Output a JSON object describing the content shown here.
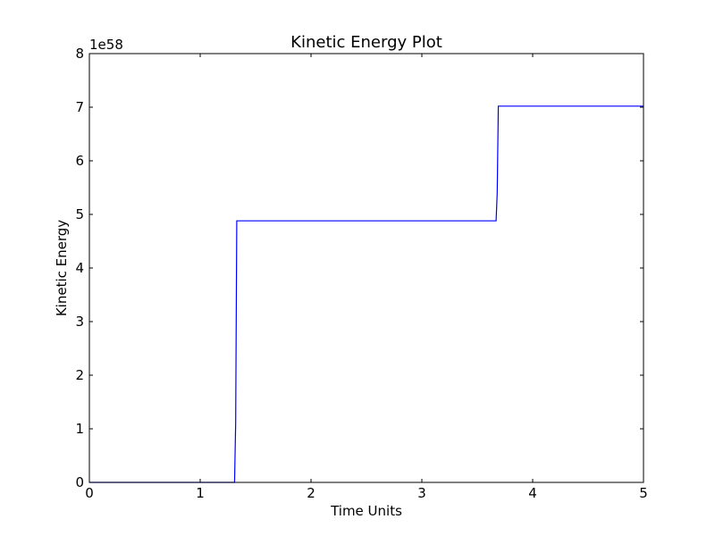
{
  "chart_data": {
    "type": "line",
    "title": "Kinetic Energy Plot",
    "xlabel": "Time Units",
    "ylabel": "Kinetic Energy",
    "y_offset_text": "1e58",
    "y_scale": 1e+58,
    "xlim": [
      0,
      5
    ],
    "ylim": [
      0,
      8
    ],
    "grid": false,
    "x_ticks": [
      0,
      1,
      2,
      3,
      4,
      5
    ],
    "y_ticks": [
      0,
      1,
      2,
      3,
      4,
      5,
      6,
      7,
      8
    ],
    "x_tick_labels": [
      "0",
      "1",
      "2",
      "3",
      "4",
      "5"
    ],
    "y_tick_labels": [
      "0",
      "1",
      "2",
      "3",
      "4",
      "5",
      "6",
      "7",
      "8"
    ],
    "series": [
      {
        "color": "#0000ff",
        "x": [
          0,
          1.31,
          1.32,
          1.33,
          3.67,
          3.68,
          3.69,
          5.0
        ],
        "y": [
          0,
          0,
          1.1,
          4.88,
          4.88,
          5.4,
          7.02,
          7.02
        ]
      }
    ]
  }
}
